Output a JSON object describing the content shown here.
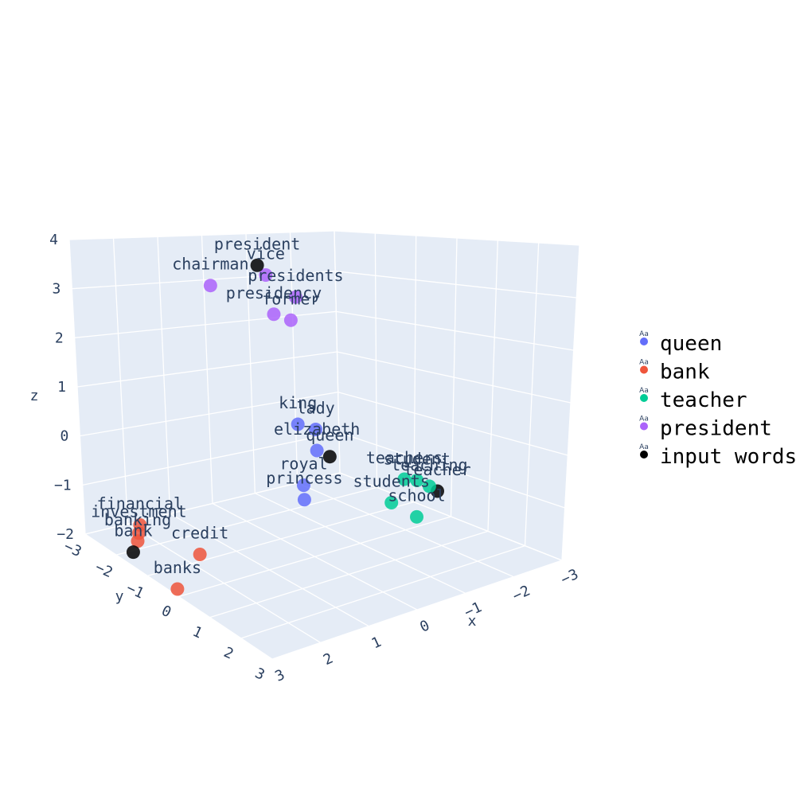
{
  "chart_data": {
    "type": "scatter3d",
    "axes": {
      "x": {
        "label": "x",
        "ticks": [
          "−3",
          "−2",
          "−1",
          "0",
          "1",
          "2",
          "3"
        ],
        "tick_values": [
          -3,
          -2,
          -1,
          0,
          1,
          2,
          3
        ]
      },
      "y": {
        "label": "y",
        "ticks": [
          "−3",
          "−2",
          "−1",
          "0",
          "1",
          "2",
          "3"
        ],
        "tick_values": [
          -3,
          -2,
          -1,
          0,
          1,
          2,
          3
        ]
      },
      "z": {
        "label": "z",
        "ticks": [
          "−2",
          "−1",
          "0",
          "1",
          "2",
          "3",
          "4"
        ],
        "tick_values": [
          -2,
          -1,
          0,
          1,
          2,
          3,
          4
        ]
      }
    },
    "series": [
      {
        "name": "queen",
        "color": "#636efa",
        "points": [
          {
            "label": "king",
            "x": 0.1,
            "y": -0.5,
            "z": 0.6
          },
          {
            "label": "lady",
            "x": -0.4,
            "y": -0.6,
            "z": 0.35
          },
          {
            "label": "elizabeth",
            "x": -0.1,
            "y": -0.2,
            "z": 0.1
          },
          {
            "label": "royal",
            "x": 0.25,
            "y": -0.1,
            "z": -0.5
          },
          {
            "label": "princess",
            "x": 0.3,
            "y": 0.0,
            "z": -0.75
          }
        ]
      },
      {
        "name": "bank",
        "color": "#ef553b",
        "points": [
          {
            "label": "financial",
            "x": 2.6,
            "y": -1.8,
            "z": -1.4
          },
          {
            "label": "investment",
            "x": 2.7,
            "y": -1.7,
            "z": -1.5
          },
          {
            "label": "banking",
            "x": 2.8,
            "y": -1.6,
            "z": -1.6
          },
          {
            "label": "banks",
            "x": 2.6,
            "y": -0.6,
            "z": -2.2
          },
          {
            "label": "credit",
            "x": 1.9,
            "y": -0.9,
            "z": -1.8
          }
        ]
      },
      {
        "name": "teacher",
        "color": "#00cc96",
        "points": [
          {
            "label": "teachers",
            "x": -1.6,
            "y": 0.4,
            "z": -0.7
          },
          {
            "label": "teaching",
            "x": -2.0,
            "y": 0.6,
            "z": -0.9
          },
          {
            "label": "students",
            "x": -1.0,
            "y": 0.8,
            "z": -0.9
          },
          {
            "label": "school",
            "x": -1.5,
            "y": 0.9,
            "z": -1.3
          },
          {
            "label": "student",
            "x": -1.8,
            "y": 0.5,
            "z": -0.75
          }
        ]
      },
      {
        "name": "president",
        "color": "#ab63fa",
        "points": [
          {
            "label": "vice",
            "x": -0.2,
            "y": -1.7,
            "z": 3.4
          },
          {
            "label": "presidents",
            "x": -0.7,
            "y": -1.5,
            "z": 2.9
          },
          {
            "label": "chairman",
            "x": 0.5,
            "y": -2.3,
            "z": 3.1
          },
          {
            "label": "presidency",
            "x": -0.2,
            "y": -1.5,
            "z": 2.6
          },
          {
            "label": "former",
            "x": -0.5,
            "y": -1.4,
            "z": 2.45
          }
        ]
      },
      {
        "name": "input words",
        "color": "#000000",
        "points": [
          {
            "label": "president",
            "x": -0.1,
            "y": -1.8,
            "z": 3.6
          },
          {
            "label": "queen",
            "x": -0.4,
            "y": -0.2,
            "z": -0.1
          },
          {
            "label": "bank",
            "x": 2.9,
            "y": -1.6,
            "z": -1.8
          },
          {
            "label": "teacher",
            "x": -2.1,
            "y": 0.7,
            "z": -1.0
          }
        ]
      }
    ],
    "legend": {
      "placement": "right",
      "marker_text": "Aa"
    },
    "grid": true
  }
}
